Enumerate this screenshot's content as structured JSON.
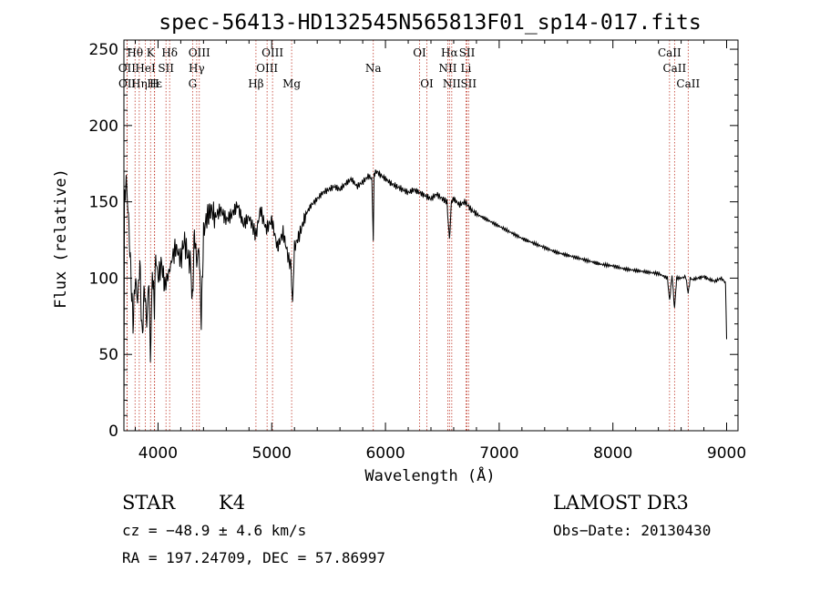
{
  "chart_data": {
    "type": "line",
    "title": "spec-56413-HD132545N565813F01_sp14-017.fits",
    "xlabel": "Wavelength (Å)",
    "ylabel": "Flux (relative)",
    "xlim": [
      3700,
      9100
    ],
    "ylim": [
      0,
      256
    ],
    "xticks": [
      4000,
      5000,
      6000,
      7000,
      8000,
      9000
    ],
    "yticks": [
      0,
      50,
      100,
      150,
      200,
      250
    ],
    "xtick_labels": [
      "4000",
      "5000",
      "6000",
      "7000",
      "8000",
      "9000"
    ],
    "ytick_labels": [
      "0",
      "50",
      "100",
      "150",
      "200",
      "250"
    ],
    "series": [
      {
        "name": "flux",
        "x": [
          3700,
          3705,
          3720,
          3740,
          3760,
          3780,
          3800,
          3820,
          3840,
          3860,
          3880,
          3900,
          3920,
          3933,
          3950,
          3968,
          3980,
          4000,
          4030,
          4060,
          4101,
          4130,
          4160,
          4200,
          4230,
          4260,
          4290,
          4300,
          4320,
          4340,
          4360,
          4380,
          4400,
          4430,
          4470,
          4500,
          4550,
          4600,
          4650,
          4700,
          4750,
          4800,
          4861,
          4900,
          4950,
          5000,
          5050,
          5100,
          5150,
          5170,
          5183,
          5190,
          5200,
          5250,
          5300,
          5350,
          5400,
          5450,
          5500,
          5550,
          5600,
          5650,
          5700,
          5750,
          5800,
          5850,
          5880,
          5893,
          5900,
          5920,
          5950,
          6000,
          6050,
          6100,
          6150,
          6200,
          6250,
          6300,
          6350,
          6400,
          6450,
          6500,
          6540,
          6563,
          6580,
          6600,
          6650,
          6700,
          6750,
          6800,
          6900,
          7000,
          7100,
          7200,
          7300,
          7400,
          7500,
          7600,
          7700,
          7800,
          7900,
          8000,
          8100,
          8200,
          8300,
          8400,
          8480,
          8498,
          8520,
          8542,
          8560,
          8600,
          8640,
          8662,
          8680,
          8700,
          8750,
          8800,
          8850,
          8900,
          8950,
          8980,
          8990,
          8995,
          9000
        ],
        "values": [
          5,
          150,
          165,
          140,
          105,
          70,
          100,
          85,
          110,
          60,
          95,
          70,
          100,
          45,
          105,
          80,
          115,
          100,
          110,
          95,
          105,
          115,
          120,
          112,
          125,
          115,
          108,
          80,
          130,
          110,
          120,
          72,
          130,
          140,
          145,
          140,
          145,
          138,
          142,
          148,
          135,
          140,
          128,
          145,
          132,
          138,
          120,
          130,
          112,
          108,
          80,
          100,
          120,
          130,
          142,
          148,
          152,
          156,
          158,
          160,
          158,
          162,
          165,
          160,
          163,
          167,
          165,
          125,
          168,
          170,
          168,
          165,
          162,
          160,
          158,
          156,
          158,
          156,
          154,
          152,
          155,
          152,
          150,
          125,
          150,
          152,
          148,
          150,
          145,
          142,
          138,
          134,
          130,
          126,
          123,
          120,
          117,
          115,
          113,
          111,
          109,
          108,
          106,
          105,
          104,
          103,
          100,
          85,
          102,
          80,
          100,
          100,
          101,
          90,
          100,
          99,
          100,
          101,
          99,
          98,
          100,
          98,
          96,
          80,
          60
        ]
      }
    ],
    "lines": [
      {
        "label": "Hθ",
        "x": 3798,
        "row": 0
      },
      {
        "label": "K",
        "x": 3934,
        "row": 0
      },
      {
        "label": "Hδ",
        "x": 4102,
        "row": 0
      },
      {
        "label": "OIII",
        "x": 4363,
        "row": 0
      },
      {
        "label": "OIII",
        "x": 5007,
        "row": 0
      },
      {
        "label": "OI",
        "x": 6300,
        "row": 0
      },
      {
        "label": "Hα",
        "x": 6563,
        "row": 0
      },
      {
        "label": "SII",
        "x": 6717,
        "row": 0
      },
      {
        "label": "CaII",
        "x": 8498,
        "row": 0
      },
      {
        "label": "OII",
        "x": 3727,
        "row": 1
      },
      {
        "label": "HeI",
        "x": 3889,
        "row": 1
      },
      {
        "label": "SII",
        "x": 4070,
        "row": 1
      },
      {
        "label": "Hγ",
        "x": 4340,
        "row": 1
      },
      {
        "label": "OIII",
        "x": 4959,
        "row": 1
      },
      {
        "label": "Na",
        "x": 5893,
        "row": 1
      },
      {
        "label": "NII",
        "x": 6548,
        "row": 1
      },
      {
        "label": "Li",
        "x": 6708,
        "row": 1
      },
      {
        "label": "CaII",
        "x": 8542,
        "row": 1
      },
      {
        "label": "OII",
        "x": 3729,
        "row": 2
      },
      {
        "label": "Hε",
        "x": 3970,
        "row": 2
      },
      {
        "label": "Hη",
        "x": 3835,
        "row": 2
      },
      {
        "label": "H",
        "x": 3968,
        "row": 2
      },
      {
        "label": "G",
        "x": 4304,
        "row": 2
      },
      {
        "label": "Hβ",
        "x": 4861,
        "row": 2
      },
      {
        "label": "Mg",
        "x": 5175,
        "row": 2
      },
      {
        "label": "OI",
        "x": 6364,
        "row": 2
      },
      {
        "label": "NII",
        "x": 6583,
        "row": 2
      },
      {
        "label": "SII",
        "x": 6731,
        "row": 2
      },
      {
        "label": "CaII",
        "x": 8662,
        "row": 2
      }
    ]
  },
  "info": {
    "object_class": "STAR",
    "subclass": "K4",
    "cz": "cz = −48.9 ± 4.6 km/s",
    "coords": "RA = 197.24709, DEC =  57.86997",
    "survey": "LAMOST DR3",
    "obs_date": "Obs−Date: 20130430"
  }
}
